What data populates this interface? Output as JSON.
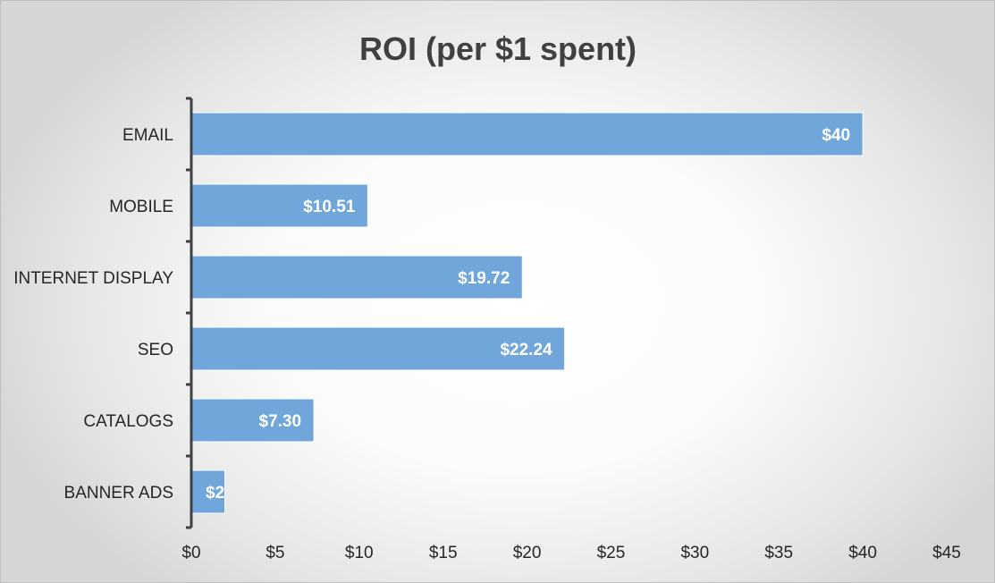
{
  "chart_data": {
    "type": "bar",
    "orientation": "horizontal",
    "title": "ROI (per $1 spent)",
    "categories": [
      "EMAIL",
      "MOBILE",
      "INTERNET DISPLAY",
      "SEO",
      "CATALOGS",
      "BANNER ADS"
    ],
    "values": [
      40,
      10.51,
      19.72,
      22.24,
      7.3,
      2
    ],
    "data_labels": [
      "$40",
      "$10.51",
      "$19.72",
      "$22.24",
      "$7.30",
      "$2"
    ],
    "xlim": [
      0,
      45
    ],
    "xticks": [
      0,
      5,
      10,
      15,
      20,
      25,
      30,
      35,
      40,
      45
    ],
    "xtick_labels": [
      "$0",
      "$5",
      "$10",
      "$15",
      "$20",
      "$25",
      "$30",
      "$35",
      "$40",
      "$45"
    ],
    "grid": false,
    "legend": "none",
    "bar_color": "#70a6da",
    "bar_border_color": "#ffffff"
  }
}
